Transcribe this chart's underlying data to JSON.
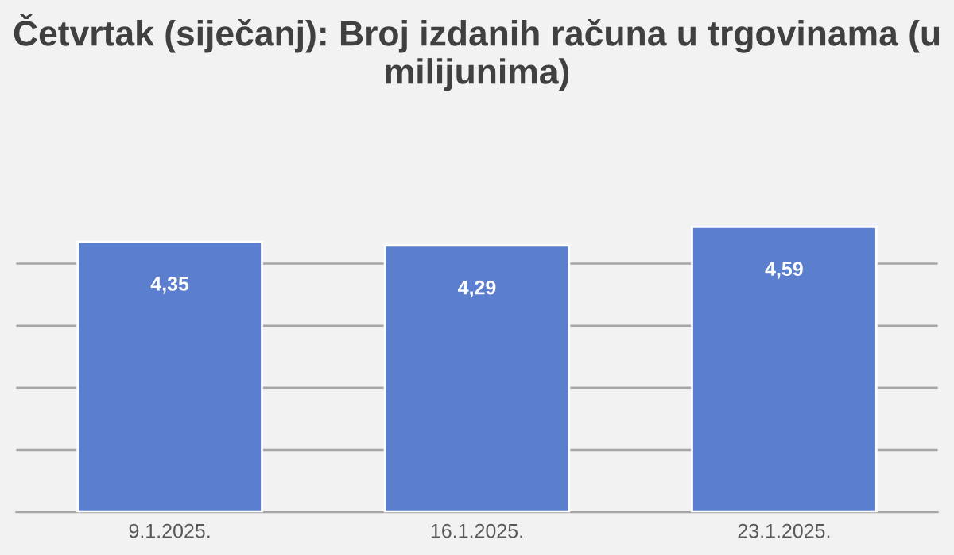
{
  "chart_data": {
    "type": "bar",
    "title": "Četvrtak (siječanj): Broj izdanih računa u trgovinama (u milijunima)",
    "categories": [
      "9.1.2025.",
      "16.1.2025.",
      "23.1.2025."
    ],
    "values": [
      4.35,
      4.29,
      4.59
    ],
    "value_labels": [
      "4,35",
      "4,29",
      "4,59"
    ],
    "color": "#5b7fce",
    "grid": "y",
    "tick_labels": "x"
  }
}
